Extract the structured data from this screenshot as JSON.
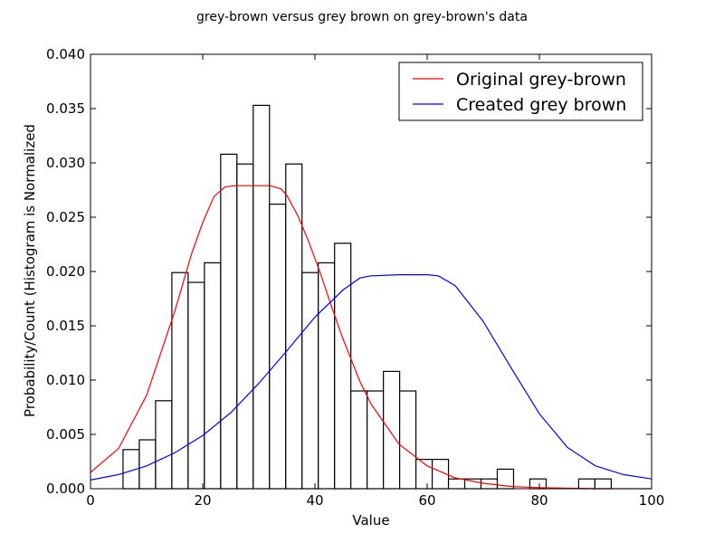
{
  "chart_data": {
    "type": "bar+line",
    "title": "grey-brown versus grey brown on grey-brown's data",
    "xlabel": "Value",
    "ylabel": "Probability/Count (Histogram is Normalized",
    "xlim": [
      0,
      100
    ],
    "ylim": [
      0,
      0.04
    ],
    "xticks": [
      "0",
      "20",
      "40",
      "60",
      "80",
      "100"
    ],
    "yticks": [
      "0.000",
      "0.005",
      "0.010",
      "0.015",
      "0.020",
      "0.025",
      "0.030",
      "0.035",
      "0.040"
    ],
    "grid": false,
    "legend_position": "top-right",
    "histogram": {
      "bin_edges": [
        0,
        2.9,
        5.8,
        8.7,
        11.6,
        14.5,
        17.4,
        20.3,
        23.2,
        26.1,
        29.0,
        31.9,
        34.8,
        37.7,
        40.6,
        43.5,
        46.4,
        49.3,
        52.2,
        55.1,
        58.0,
        60.9,
        63.8,
        66.7,
        69.6,
        72.5,
        75.4,
        78.3,
        81.2,
        84.1,
        87.0,
        89.9,
        92.8,
        95.7
      ],
      "values": [
        0,
        0,
        0.0036,
        0.0045,
        0.0081,
        0.0199,
        0.019,
        0.0208,
        0.0308,
        0.0299,
        0.0353,
        0.0262,
        0.0299,
        0.0199,
        0.0208,
        0.0226,
        0.009,
        0.009,
        0.0108,
        0.009,
        0.0027,
        0.0027,
        0.0009,
        0.0009,
        0.0009,
        0.0018,
        0,
        0.0009,
        0,
        0,
        0.0009,
        0.0009,
        0
      ],
      "edge_color": "#000000",
      "fill_color": "#ffffff"
    },
    "series": [
      {
        "name": "Original grey-brown",
        "color": "#ff0000",
        "x": [
          0,
          5,
          10,
          15,
          18,
          20,
          22,
          24,
          26,
          28,
          30,
          32,
          34,
          35,
          37,
          39,
          41,
          43,
          45,
          48,
          50,
          55,
          60,
          65,
          70,
          75,
          80,
          90,
          100
        ],
        "y": [
          0.0015,
          0.0037,
          0.0086,
          0.0163,
          0.0216,
          0.0245,
          0.0269,
          0.0278,
          0.0279,
          0.0279,
          0.0279,
          0.0279,
          0.0276,
          0.027,
          0.0251,
          0.0226,
          0.0198,
          0.0167,
          0.0138,
          0.0099,
          0.0078,
          0.0041,
          0.0021,
          0.001,
          0.0005,
          0.0002,
          0.0001,
          0,
          0
        ]
      },
      {
        "name": "Created grey brown",
        "color": "#0000ff",
        "x": [
          0,
          5,
          10,
          15,
          20,
          25,
          30,
          35,
          40,
          45,
          48,
          50,
          55,
          60,
          62,
          65,
          70,
          75,
          80,
          85,
          90,
          95,
          100
        ],
        "y": [
          0.0008,
          0.0013,
          0.0021,
          0.0033,
          0.0049,
          0.007,
          0.0097,
          0.0127,
          0.0158,
          0.0183,
          0.0194,
          0.0196,
          0.0197,
          0.0197,
          0.0196,
          0.0187,
          0.0154,
          0.0111,
          0.0069,
          0.0038,
          0.0021,
          0.0013,
          0.0009
        ]
      }
    ]
  }
}
